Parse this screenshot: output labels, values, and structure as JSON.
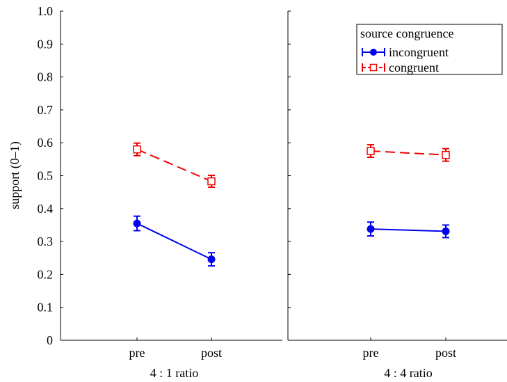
{
  "chart_data": {
    "type": "line",
    "ylabel": "support (0–1)",
    "ylim": [
      0,
      1
    ],
    "yticks": [
      "0",
      "0.1",
      "0.2",
      "0.3",
      "0.4",
      "0.5",
      "0.6",
      "0.7",
      "0.8",
      "0.9",
      "1.0"
    ],
    "categories": [
      "pre",
      "post"
    ],
    "legend": {
      "title": "source congruence",
      "placement": "top-right"
    },
    "panels": [
      {
        "xlabel": "4 : 1 ratio",
        "series": [
          {
            "name": "incongruent",
            "color": "#0000ee",
            "marker": "filled-circle",
            "line": "solid",
            "values": [
              0.355,
              0.246
            ],
            "errors": [
              0.022,
              0.02
            ]
          },
          {
            "name": "congruent",
            "color": "#ee0000",
            "marker": "open-square",
            "line": "dashed",
            "values": [
              0.58,
              0.483
            ],
            "errors": [
              0.019,
              0.018
            ]
          }
        ]
      },
      {
        "xlabel": "4 : 4 ratio",
        "series": [
          {
            "name": "incongruent",
            "color": "#0000ee",
            "marker": "filled-circle",
            "line": "solid",
            "values": [
              0.338,
              0.331
            ],
            "errors": [
              0.021,
              0.019
            ]
          },
          {
            "name": "congruent",
            "color": "#ee0000",
            "marker": "open-square",
            "line": "dashed",
            "values": [
              0.575,
              0.563
            ],
            "errors": [
              0.019,
              0.019
            ]
          }
        ]
      }
    ]
  }
}
